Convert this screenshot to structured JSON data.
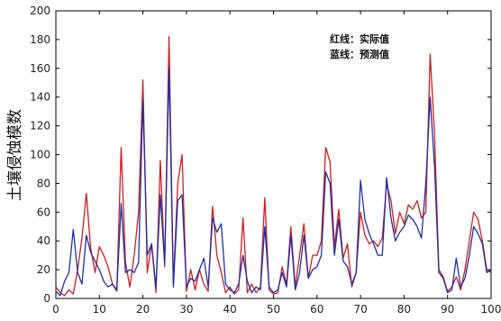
{
  "chart_data": {
    "type": "line",
    "ylabel": "土壤侵蚀模数",
    "xlabel": "",
    "xlim": [
      0,
      100
    ],
    "ylim": [
      0,
      200
    ],
    "xticks": [
      0,
      10,
      20,
      30,
      40,
      50,
      60,
      70,
      80,
      90,
      100
    ],
    "yticks": [
      0,
      20,
      40,
      60,
      80,
      100,
      120,
      140,
      160,
      180,
      200
    ],
    "grid": false,
    "legend_position": "top-right",
    "legend": [
      "红线：实际值",
      "蓝线：预测值"
    ],
    "x": [
      0,
      1,
      2,
      3,
      4,
      5,
      6,
      7,
      8,
      9,
      10,
      11,
      12,
      13,
      14,
      15,
      16,
      17,
      18,
      19,
      20,
      21,
      22,
      23,
      24,
      25,
      26,
      27,
      28,
      29,
      30,
      31,
      32,
      33,
      34,
      35,
      36,
      37,
      38,
      39,
      40,
      41,
      42,
      43,
      44,
      45,
      46,
      47,
      48,
      49,
      50,
      51,
      52,
      53,
      54,
      55,
      56,
      57,
      58,
      59,
      60,
      61,
      62,
      63,
      64,
      65,
      66,
      67,
      68,
      69,
      70,
      71,
      72,
      73,
      74,
      75,
      76,
      77,
      78,
      79,
      80,
      81,
      82,
      83,
      84,
      85,
      86,
      87,
      88,
      89,
      90,
      91,
      92,
      93,
      94,
      95,
      96,
      97,
      98,
      99,
      100
    ],
    "series": [
      {
        "color": "#cc1f1f",
        "values": [
          8,
          4,
          2,
          6,
          3,
          20,
          42,
          73,
          35,
          18,
          36,
          30,
          22,
          10,
          5,
          105,
          25,
          8,
          30,
          60,
          152,
          18,
          38,
          4,
          96,
          22,
          182,
          10,
          80,
          100,
          5,
          20,
          6,
          20,
          10,
          5,
          64,
          30,
          18,
          4,
          8,
          3,
          6,
          56,
          4,
          10,
          4,
          8,
          70,
          6,
          3,
          4,
          22,
          10,
          50,
          8,
          30,
          52,
          14,
          30,
          30,
          40,
          105,
          95,
          36,
          62,
          28,
          38,
          8,
          18,
          60,
          44,
          38,
          40,
          36,
          42,
          80,
          68,
          45,
          60,
          52,
          65,
          62,
          68,
          56,
          60,
          170,
          115,
          20,
          15,
          5,
          8,
          15,
          6,
          20,
          40,
          60,
          55,
          40,
          20,
          18
        ]
      },
      {
        "color": "#1f2ea8",
        "values": [
          5,
          2,
          12,
          18,
          48,
          18,
          10,
          44,
          32,
          26,
          20,
          12,
          8,
          10,
          6,
          66,
          18,
          20,
          18,
          25,
          138,
          30,
          38,
          8,
          72,
          24,
          160,
          8,
          68,
          72,
          8,
          14,
          12,
          20,
          28,
          8,
          56,
          46,
          52,
          10,
          6,
          4,
          10,
          30,
          12,
          4,
          8,
          6,
          50,
          8,
          4,
          6,
          18,
          8,
          44,
          6,
          18,
          44,
          14,
          20,
          22,
          30,
          88,
          80,
          30,
          55,
          26,
          22,
          10,
          18,
          82,
          55,
          45,
          38,
          30,
          30,
          84,
          56,
          40,
          46,
          50,
          58,
          55,
          50,
          42,
          80,
          140,
          92,
          18,
          14,
          4,
          6,
          28,
          8,
          14,
          30,
          50,
          45,
          38,
          18,
          20
        ]
      }
    ]
  }
}
